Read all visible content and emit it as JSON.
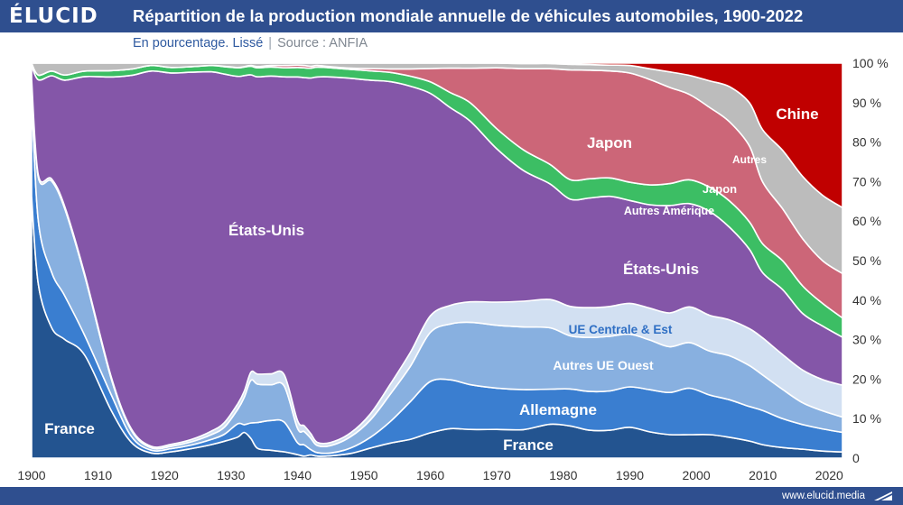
{
  "header": {
    "logo": "ÉLUCID",
    "title": "Répartition de la production mondiale annuelle de véhicules automobiles, 1900-2022",
    "subtitle": "En pourcentage. Lissé",
    "separator": "|",
    "source": "Source : ANFIA"
  },
  "footer": {
    "url": "www.elucid.media"
  },
  "colors": {
    "header_bg": "#2f4f8f",
    "france": "#235490",
    "allemagne": "#3a7ed0",
    "autres_ue_ouest": "#88b0e0",
    "ue_centrale_est": "#d2e0f2",
    "etats_unis": "#8456a8",
    "autres_amerique": "#3cbe64",
    "japon": "#cc6678",
    "autres": "#bcbcbc",
    "chine": "#c00000"
  },
  "chart_data": {
    "type": "area",
    "stacked": true,
    "title": "Répartition de la production mondiale annuelle de véhicules automobiles, 1900-2022",
    "subtitle": "En pourcentage. Lissé",
    "ylabel_unit": "%",
    "xlim": [
      1900,
      2022
    ],
    "ylim": [
      0,
      100
    ],
    "x_ticks": [
      1900,
      1910,
      1920,
      1930,
      1940,
      1950,
      1960,
      1970,
      1980,
      1990,
      2000,
      2010,
      2020
    ],
    "y_tick_labels": [
      "0",
      "10 %",
      "20 %",
      "30 %",
      "40 %",
      "50 %",
      "60 %",
      "70 %",
      "80 %",
      "90 %",
      "100 %"
    ],
    "x": [
      1900,
      1901,
      1903,
      1905,
      1908,
      1912,
      1915,
      1918,
      1921,
      1924,
      1927,
      1929,
      1931,
      1932,
      1933,
      1934,
      1936,
      1938,
      1940,
      1941,
      1942,
      1943,
      1945,
      1948,
      1951,
      1954,
      1957,
      1960,
      1963,
      1966,
      1970,
      1974,
      1978,
      1981,
      1984,
      1987,
      1990,
      1993,
      1996,
      1999,
      2002,
      2005,
      2008,
      2010,
      2013,
      2016,
      2019,
      2022
    ],
    "series": [
      {
        "name": "France",
        "label": "France",
        "values": [
          66,
          44,
          33,
          30,
          26,
          12,
          4,
          1.3,
          1.6,
          2.4,
          3.4,
          4.3,
          5.4,
          6.6,
          5.0,
          2.5,
          2.0,
          1.6,
          0.9,
          0.5,
          0.8,
          0.5,
          0.6,
          1.2,
          2.6,
          3.9,
          4.9,
          6.6,
          7.6,
          7.3,
          7.3,
          7.2,
          8.5,
          8.1,
          7.1,
          7.1,
          7.8,
          6.6,
          5.9,
          5.9,
          6.1,
          5.4,
          4.3,
          3.3,
          2.6,
          2.2,
          1.7,
          1.4
        ]
      },
      {
        "name": "Allemagne",
        "label": "Allemagne",
        "values": [
          26,
          16,
          14,
          11,
          5,
          4,
          1.5,
          0.7,
          0.8,
          0.9,
          1.3,
          1.8,
          3.4,
          2.0,
          4.0,
          6.6,
          7.6,
          7.6,
          3.0,
          2.9,
          1.4,
          0.9,
          0.7,
          1.4,
          2.8,
          5.6,
          9.8,
          13.4,
          12.6,
          11.4,
          10.5,
          10.1,
          8.8,
          9.3,
          9.9,
          10.0,
          10.2,
          10.6,
          10.6,
          11.7,
          10.3,
          9.7,
          8.7,
          8.4,
          7.1,
          6.1,
          5.4,
          4.5
        ]
      },
      {
        "name": "Autres UE Ouest",
        "label": "Autres UE Ouest",
        "values": [
          3,
          11,
          23,
          22,
          15,
          4,
          1.5,
          0.6,
          0.6,
          0.8,
          1.2,
          1.8,
          3.7,
          7.0,
          10.9,
          9.8,
          9.1,
          9.2,
          3.7,
          3.4,
          2.9,
          1.8,
          1.9,
          2.9,
          4.5,
          7.1,
          9.2,
          12.8,
          14.4,
          15.9,
          16.0,
          15.8,
          15.4,
          13.4,
          13.8,
          13.9,
          13.3,
          12.5,
          11.5,
          11.5,
          11.4,
          11.4,
          10.3,
          8.7,
          7.2,
          5.4,
          4.4,
          3.5
        ]
      },
      {
        "name": "UE Centrale & Est",
        "label": "UE Centrale & Est",
        "values": [
          0.5,
          0.6,
          0.6,
          0.6,
          0.5,
          0.5,
          0.4,
          0.4,
          0.5,
          0.6,
          0.9,
          1.2,
          1.4,
          1.6,
          2.1,
          2.6,
          2.8,
          2.9,
          2.0,
          1.5,
          1.2,
          0.8,
          0.8,
          1.0,
          1.6,
          2.6,
          3.6,
          4.3,
          4.8,
          5.2,
          5.9,
          6.5,
          7.1,
          7.4,
          7.6,
          7.6,
          7.8,
          8.0,
          8.5,
          9.0,
          9.3,
          9.3,
          9.3,
          9.1,
          8.6,
          8.1,
          7.6,
          7.3
        ]
      },
      {
        "name": "États-Unis",
        "label": "États-Unis",
        "values": [
          3.5,
          24,
          26,
          32,
          50,
          76,
          89,
          95,
          94,
          93,
          91,
          89,
          84,
          81,
          76,
          76,
          76,
          76,
          87,
          89,
          91,
          93,
          93,
          91,
          86,
          78,
          69,
          58,
          51,
          46,
          39,
          33,
          29,
          27,
          28,
          28,
          26,
          26,
          27,
          26,
          27,
          24,
          20,
          16,
          16,
          14,
          13,
          11
        ]
      },
      {
        "name": "Autres Amérique",
        "label": "Autres Amérique",
        "values": [
          0.5,
          1.2,
          1.2,
          1.3,
          1.4,
          1.6,
          1.6,
          1.4,
          1.4,
          1.4,
          1.6,
          1.9,
          2.2,
          2.2,
          2.2,
          2.3,
          2.3,
          2.3,
          2.4,
          2.5,
          2.5,
          2.5,
          2.3,
          2.3,
          2.4,
          2.4,
          2.6,
          3.0,
          3.9,
          4.7,
          5.1,
          5.2,
          4.9,
          4.9,
          4.9,
          4.7,
          4.6,
          5.0,
          5.5,
          6.0,
          6.3,
          6.8,
          6.9,
          7.1,
          7.1,
          6.8,
          5.5,
          4.4
        ]
      },
      {
        "name": "Japon",
        "label": "Japon",
        "values": [
          0,
          0,
          0,
          0,
          0,
          0,
          0,
          0,
          0,
          0,
          0,
          0.1,
          0.1,
          0.1,
          0.2,
          0.3,
          0.4,
          0.6,
          0.6,
          0.6,
          0.5,
          0.4,
          0.3,
          0.3,
          0.6,
          0.9,
          1.9,
          3.5,
          6.3,
          8.8,
          15.5,
          20.5,
          24.0,
          27.6,
          27.7,
          27.2,
          27.6,
          26.5,
          24.2,
          21.5,
          20.7,
          20.5,
          19.1,
          15.2,
          12.8,
          11.7,
          10.4,
          10.2
        ]
      },
      {
        "name": "Autres",
        "label": "Autres",
        "values": [
          0,
          3,
          2,
          3,
          2,
          1.9,
          1.5,
          0.6,
          1.1,
          0.9,
          0.6,
          0.8,
          1.1,
          0.9,
          0.6,
          0.9,
          0.6,
          0.6,
          0.5,
          0.6,
          0.8,
          0.6,
          0.9,
          1.3,
          1.4,
          1.5,
          1.5,
          1.4,
          1.3,
          1.3,
          1.2,
          1.3,
          1.3,
          1.4,
          1.4,
          1.5,
          1.9,
          2.7,
          3.9,
          4.8,
          6.9,
          9.1,
          10.9,
          12.8,
          14.4,
          15.4,
          15.9,
          15.1
        ]
      },
      {
        "name": "Chine",
        "label": "Chine",
        "values": [
          0,
          0,
          0,
          0,
          0,
          0,
          0,
          0,
          0,
          0,
          0,
          0,
          0,
          0,
          0,
          0,
          0,
          0,
          0,
          0,
          0,
          0,
          0,
          0,
          0,
          0,
          0,
          0,
          0,
          0,
          0,
          0.1,
          0.1,
          0.3,
          0.4,
          0.5,
          0.6,
          1.4,
          2.2,
          3.1,
          4.6,
          6.1,
          10.0,
          16.4,
          21.5,
          28.0,
          32.1,
          33.1
        ]
      }
    ],
    "annotations": [
      "Chine",
      "Autres",
      "Japon",
      "Japon",
      "Autres Amérique",
      "États-Unis",
      "États-Unis",
      "UE Centrale & Est",
      "Autres UE Ouest",
      "Allemagne",
      "France",
      "France"
    ]
  }
}
